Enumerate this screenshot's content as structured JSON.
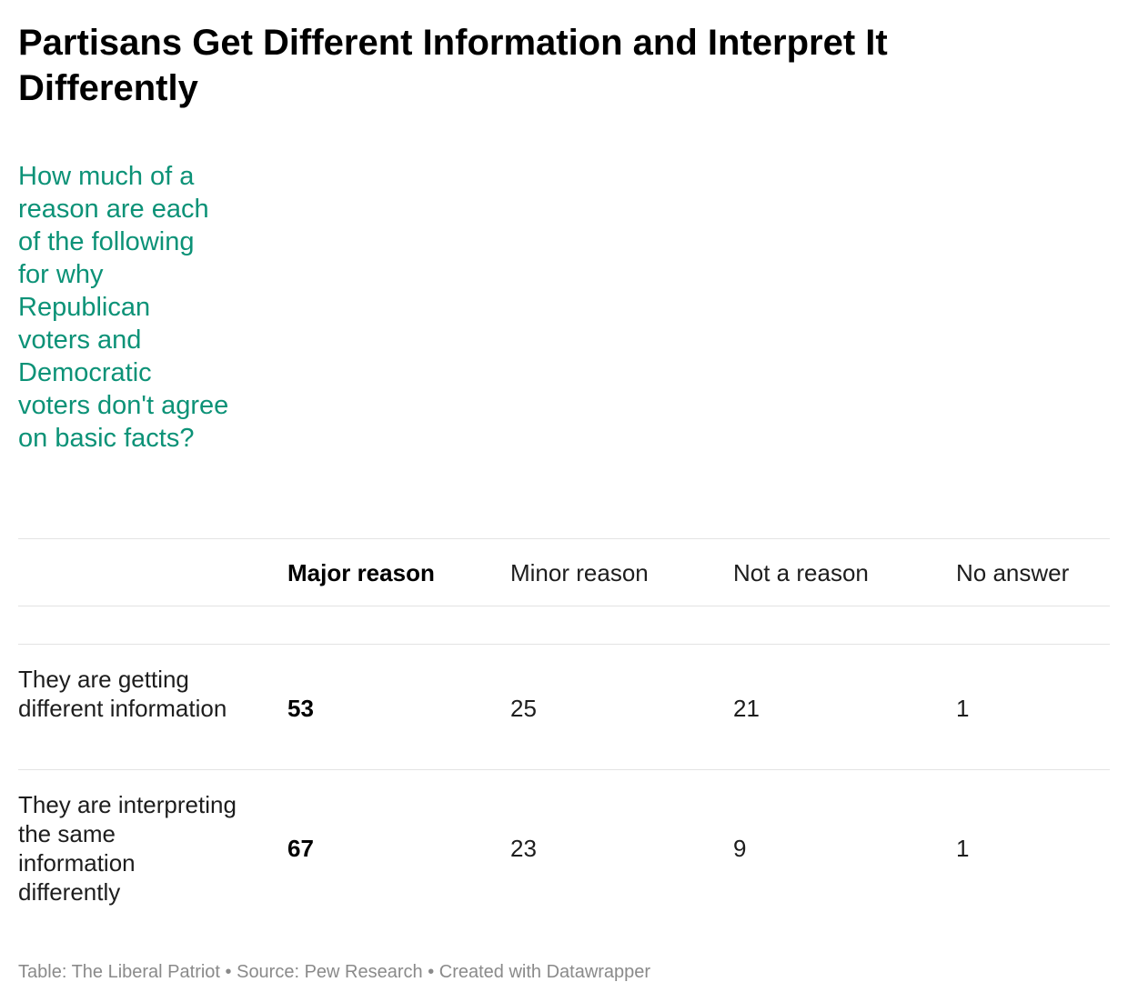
{
  "title": "Partisans Get Different Information and Interpret It Differently",
  "description": "How much of a reason are each of the following for why Republican voters and Democratic voters don't agree on basic facts?",
  "colors": {
    "description": "#0c9277",
    "text": "#1d1d1d",
    "footer": "#8a8a8a",
    "rule": "#e3e3e3"
  },
  "chart_data": {
    "type": "table",
    "columns": [
      "",
      "Major reason",
      "Minor reason",
      "Not a reason",
      "No answer"
    ],
    "rows": [
      {
        "label": "They are getting different information",
        "values": [
          53,
          25,
          21,
          1
        ]
      },
      {
        "label": "They are interpreting the same information differently",
        "values": [
          67,
          23,
          9,
          1
        ]
      }
    ],
    "highlighted_column": "Major reason"
  },
  "footer": "Table: The Liberal Patriot • Source: Pew Research • Created with Datawrapper"
}
